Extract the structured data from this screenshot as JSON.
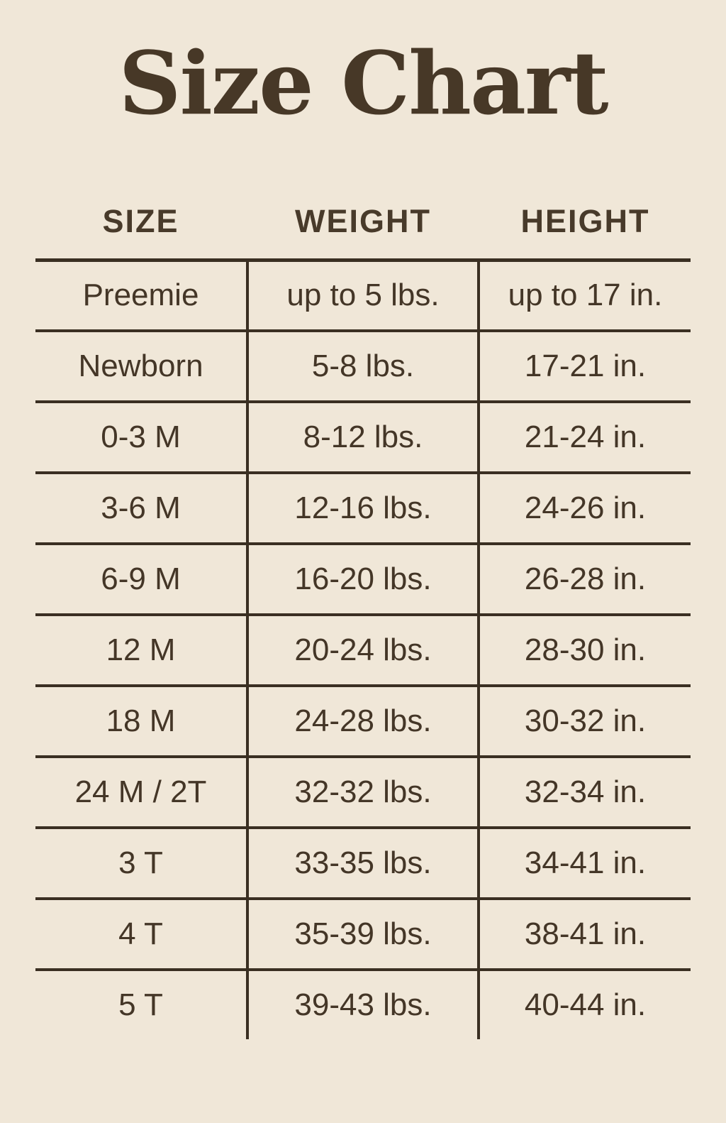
{
  "colors": {
    "background": "#F0E7D8",
    "ink": "#443627",
    "line": "#3A2F22"
  },
  "chart_data": {
    "type": "table",
    "title": "Size Chart",
    "columns": [
      "SIZE",
      "WEIGHT",
      "HEIGHT"
    ],
    "rows": [
      {
        "size": "Preemie",
        "weight": "up to 5 lbs.",
        "height": "up to 17 in."
      },
      {
        "size": "Newborn",
        "weight": "5-8 lbs.",
        "height": "17-21 in."
      },
      {
        "size": "0-3 M",
        "weight": "8-12 lbs.",
        "height": "21-24 in."
      },
      {
        "size": "3-6 M",
        "weight": "12-16 lbs.",
        "height": "24-26 in."
      },
      {
        "size": "6-9 M",
        "weight": "16-20 lbs.",
        "height": "26-28 in."
      },
      {
        "size": "12 M",
        "weight": "20-24 lbs.",
        "height": "28-30 in."
      },
      {
        "size": "18 M",
        "weight": "24-28 lbs.",
        "height": "30-32 in."
      },
      {
        "size": "24 M / 2T",
        "weight": "32-32 lbs.",
        "height": "32-34 in."
      },
      {
        "size": "3 T",
        "weight": "33-35 lbs.",
        "height": "34-41 in."
      },
      {
        "size": "4 T",
        "weight": "35-39 lbs.",
        "height": "38-41 in."
      },
      {
        "size": "5 T",
        "weight": "39-43 lbs.",
        "height": "40-44 in."
      }
    ]
  }
}
